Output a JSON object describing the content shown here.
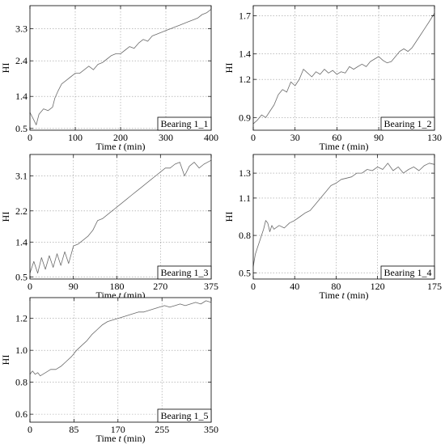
{
  "chart_data": [
    {
      "type": "line",
      "title": "",
      "legend_label": "Bearing 1_1",
      "legend_position": "bottom-right",
      "xlabel_prefix": "Time ",
      "xlabel_italic": "t",
      "xlabel_suffix": " (min)",
      "ylabel": "HI",
      "xlim": [
        0,
        400
      ],
      "ylim": [
        0.45,
        3.95
      ],
      "xticks": [
        0,
        100,
        200,
        300,
        400
      ],
      "yticks": [
        0.5,
        1.4,
        2.4,
        3.3
      ],
      "ytick_labels": [
        "0.5",
        "1.4",
        "2.4",
        "3.3"
      ],
      "grid": true,
      "series": [
        {
          "x": [
            0,
            8,
            14,
            20,
            30,
            40,
            50,
            55,
            62,
            70,
            80,
            90,
            100,
            110,
            120,
            130,
            140,
            150,
            160,
            170,
            180,
            190,
            200,
            210,
            220,
            230,
            240,
            250,
            260,
            270,
            280,
            290,
            300,
            310,
            320,
            330,
            340,
            350,
            360,
            370,
            380,
            390,
            400
          ],
          "y": [
            0.95,
            0.75,
            0.6,
            0.9,
            1.05,
            1.0,
            1.1,
            1.35,
            1.55,
            1.75,
            1.85,
            1.95,
            2.05,
            2.05,
            2.15,
            2.25,
            2.15,
            2.3,
            2.35,
            2.45,
            2.55,
            2.6,
            2.6,
            2.7,
            2.8,
            2.75,
            2.9,
            3.0,
            2.95,
            3.1,
            3.15,
            3.2,
            3.25,
            3.3,
            3.35,
            3.4,
            3.45,
            3.5,
            3.55,
            3.6,
            3.7,
            3.75,
            3.85
          ]
        }
      ]
    },
    {
      "type": "line",
      "title": "",
      "legend_label": "Bearing 1_2",
      "legend_position": "bottom-right",
      "xlabel_prefix": "Time ",
      "xlabel_italic": "t",
      "xlabel_suffix": " (min)",
      "ylabel": "HI",
      "xlim": [
        0,
        130
      ],
      "ylim": [
        0.8,
        1.78
      ],
      "xticks": [
        0,
        30,
        60,
        90,
        130
      ],
      "yticks": [
        0.9,
        1.2,
        1.4,
        1.7
      ],
      "ytick_labels": [
        "0.9",
        "1.2",
        "1.4",
        "1.7"
      ],
      "grid": true,
      "series": [
        {
          "x": [
            0,
            3,
            6,
            9,
            12,
            15,
            18,
            21,
            24,
            27,
            30,
            33,
            36,
            39,
            42,
            45,
            48,
            51,
            54,
            57,
            60,
            63,
            66,
            69,
            72,
            75,
            78,
            81,
            84,
            87,
            90,
            93,
            96,
            99,
            102,
            105,
            108,
            111,
            114,
            117,
            120,
            123,
            126,
            130
          ],
          "y": [
            0.85,
            0.88,
            0.92,
            0.9,
            0.95,
            1.0,
            1.08,
            1.12,
            1.1,
            1.18,
            1.15,
            1.2,
            1.28,
            1.25,
            1.22,
            1.26,
            1.24,
            1.28,
            1.25,
            1.27,
            1.24,
            1.26,
            1.25,
            1.3,
            1.28,
            1.3,
            1.32,
            1.3,
            1.34,
            1.36,
            1.38,
            1.35,
            1.33,
            1.34,
            1.38,
            1.42,
            1.44,
            1.42,
            1.45,
            1.5,
            1.55,
            1.6,
            1.65,
            1.72
          ]
        }
      ]
    },
    {
      "type": "line",
      "title": "",
      "legend_label": "Bearing 1_3",
      "legend_position": "bottom-right",
      "xlabel_prefix": "Time ",
      "xlabel_italic": "t",
      "xlabel_suffix": " (min)",
      "ylabel": "HI",
      "xlim": [
        0,
        375
      ],
      "ylim": [
        0.45,
        3.65
      ],
      "xticks": [
        0,
        90,
        180,
        270,
        375
      ],
      "yticks": [
        0.5,
        1.4,
        2.2,
        3.1
      ],
      "ytick_labels": [
        "0.5",
        "1.4",
        "2.2",
        "3.1"
      ],
      "grid": true,
      "series": [
        {
          "x": [
            0,
            8,
            16,
            24,
            32,
            40,
            48,
            56,
            64,
            72,
            80,
            90,
            100,
            110,
            120,
            130,
            140,
            150,
            160,
            170,
            180,
            190,
            200,
            210,
            220,
            230,
            240,
            250,
            260,
            270,
            280,
            290,
            300,
            310,
            320,
            330,
            340,
            350,
            360,
            375
          ],
          "y": [
            0.6,
            0.9,
            0.6,
            1.0,
            0.7,
            1.05,
            0.75,
            1.1,
            0.8,
            1.15,
            0.85,
            1.3,
            1.35,
            1.45,
            1.55,
            1.7,
            1.95,
            2.0,
            2.1,
            2.2,
            2.3,
            2.4,
            2.5,
            2.6,
            2.7,
            2.8,
            2.9,
            3.0,
            3.1,
            3.2,
            3.3,
            3.3,
            3.4,
            3.45,
            3.1,
            3.35,
            3.45,
            3.3,
            3.4,
            3.5
          ]
        }
      ]
    },
    {
      "type": "line",
      "title": "",
      "legend_label": "Bearing 1_4",
      "legend_position": "bottom-right",
      "xlabel_prefix": "Time ",
      "xlabel_italic": "t",
      "xlabel_suffix": " (min)",
      "ylabel": "HI",
      "xlim": [
        0,
        175
      ],
      "ylim": [
        0.45,
        1.45
      ],
      "xticks": [
        0,
        40,
        80,
        120,
        175
      ],
      "yticks": [
        0.5,
        0.8,
        1.1,
        1.3
      ],
      "ytick_labels": [
        "0.5",
        "0.8",
        "1.1",
        "1.3"
      ],
      "grid": true,
      "series": [
        {
          "x": [
            0,
            2,
            4,
            6,
            8,
            10,
            12,
            14,
            16,
            18,
            20,
            25,
            30,
            35,
            40,
            45,
            50,
            55,
            60,
            65,
            70,
            75,
            80,
            85,
            90,
            95,
            100,
            105,
            110,
            115,
            120,
            125,
            130,
            135,
            140,
            145,
            150,
            155,
            160,
            165,
            170,
            175
          ],
          "y": [
            0.55,
            0.65,
            0.7,
            0.75,
            0.8,
            0.85,
            0.92,
            0.9,
            0.83,
            0.88,
            0.85,
            0.88,
            0.86,
            0.9,
            0.92,
            0.95,
            0.98,
            1.0,
            1.05,
            1.1,
            1.15,
            1.2,
            1.22,
            1.25,
            1.26,
            1.27,
            1.3,
            1.3,
            1.33,
            1.32,
            1.35,
            1.33,
            1.38,
            1.32,
            1.35,
            1.3,
            1.33,
            1.35,
            1.32,
            1.36,
            1.38,
            1.37
          ]
        }
      ]
    },
    {
      "type": "line",
      "title": "",
      "legend_label": "Bearing 1_5",
      "legend_position": "bottom-right",
      "xlabel_prefix": "Time ",
      "xlabel_italic": "t",
      "xlabel_suffix": " (min)",
      "ylabel": "HI",
      "xlim": [
        0,
        350
      ],
      "ylim": [
        0.55,
        1.33
      ],
      "xticks": [
        0,
        85,
        170,
        255,
        350
      ],
      "yticks": [
        0.6,
        0.8,
        1.0,
        1.2
      ],
      "ytick_labels": [
        "0.6",
        "0.8",
        "1.0",
        "1.2"
      ],
      "grid": true,
      "series": [
        {
          "x": [
            0,
            5,
            10,
            15,
            20,
            30,
            40,
            50,
            60,
            70,
            80,
            90,
            100,
            110,
            120,
            130,
            140,
            150,
            160,
            170,
            180,
            190,
            200,
            210,
            220,
            230,
            240,
            250,
            260,
            270,
            280,
            290,
            300,
            310,
            320,
            330,
            340,
            350
          ],
          "y": [
            0.85,
            0.87,
            0.85,
            0.86,
            0.84,
            0.86,
            0.88,
            0.88,
            0.9,
            0.93,
            0.96,
            1.0,
            1.03,
            1.06,
            1.1,
            1.13,
            1.16,
            1.18,
            1.19,
            1.2,
            1.21,
            1.22,
            1.23,
            1.24,
            1.24,
            1.25,
            1.26,
            1.27,
            1.28,
            1.27,
            1.28,
            1.29,
            1.28,
            1.29,
            1.3,
            1.29,
            1.31,
            1.3
          ]
        }
      ]
    }
  ]
}
